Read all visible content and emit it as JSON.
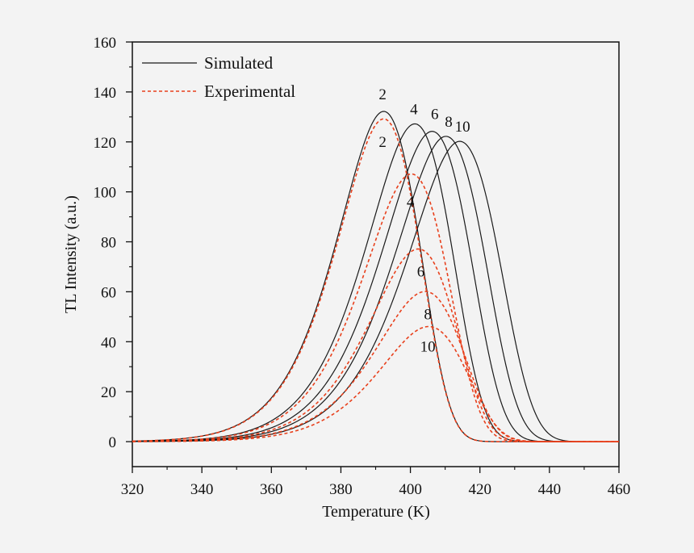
{
  "chart_data": {
    "type": "line",
    "xlabel": "Temperature (K)",
    "ylabel": "TL Intensity (a.u.)",
    "xlim": [
      320,
      460
    ],
    "ylim": [
      -10,
      160
    ],
    "x_ticks": [
      320,
      340,
      360,
      380,
      400,
      420,
      440,
      460
    ],
    "y_ticks": [
      0,
      20,
      40,
      60,
      80,
      100,
      120,
      140,
      160
    ],
    "legend": {
      "position": "top-left",
      "entries": [
        {
          "label": "Simulated",
          "style": "solid",
          "color": "#1a1a1a"
        },
        {
          "label": "Experimental",
          "style": "dashed",
          "color": "#e8401c"
        }
      ]
    },
    "series": [
      {
        "name": "Simulated 2",
        "group": "Simulated",
        "label": "2",
        "peak_T": 393,
        "peak_I": 132,
        "color": "#1a1a1a"
      },
      {
        "name": "Simulated 4",
        "group": "Simulated",
        "label": "4",
        "peak_T": 402,
        "peak_I": 127,
        "color": "#1a1a1a"
      },
      {
        "name": "Simulated 6",
        "group": "Simulated",
        "label": "6",
        "peak_T": 407,
        "peak_I": 124,
        "color": "#1a1a1a"
      },
      {
        "name": "Simulated 8",
        "group": "Simulated",
        "label": "8",
        "peak_T": 411,
        "peak_I": 122,
        "color": "#1a1a1a"
      },
      {
        "name": "Simulated 10",
        "group": "Simulated",
        "label": "10",
        "peak_T": 415,
        "peak_I": 120,
        "color": "#1a1a1a"
      },
      {
        "name": "Experimental 2",
        "group": "Experimental",
        "label": "2",
        "peak_T": 393,
        "peak_I": 129,
        "color": "#e8401c"
      },
      {
        "name": "Experimental 4",
        "group": "Experimental",
        "label": "4",
        "peak_T": 401,
        "peak_I": 107,
        "color": "#e8401c"
      },
      {
        "name": "Experimental 6",
        "group": "Experimental",
        "label": "6",
        "peak_T": 403,
        "peak_I": 77,
        "color": "#e8401c"
      },
      {
        "name": "Experimental 8",
        "group": "Experimental",
        "label": "8",
        "peak_T": 405,
        "peak_I": 60,
        "color": "#e8401c"
      },
      {
        "name": "Experimental 10",
        "group": "Experimental",
        "label": "10",
        "peak_T": 406,
        "peak_I": 46,
        "color": "#e8401c"
      }
    ],
    "annotations": [
      {
        "text": "2",
        "series": "Simulated 2",
        "x": 392,
        "y": 139
      },
      {
        "text": "4",
        "series": "Simulated 4",
        "x": 401,
        "y": 133
      },
      {
        "text": "6",
        "series": "Simulated 6",
        "x": 407,
        "y": 131
      },
      {
        "text": "8",
        "series": "Simulated 8",
        "x": 411,
        "y": 128
      },
      {
        "text": "10",
        "series": "Simulated 10",
        "x": 415,
        "y": 126
      },
      {
        "text": "2",
        "series": "Experimental 2",
        "x": 392,
        "y": 120
      },
      {
        "text": "4",
        "series": "Experimental 4",
        "x": 400,
        "y": 96
      },
      {
        "text": "6",
        "series": "Experimental 6",
        "x": 403,
        "y": 68
      },
      {
        "text": "8",
        "series": "Experimental 8",
        "x": 405,
        "y": 51
      },
      {
        "text": "10",
        "series": "Experimental 10",
        "x": 405,
        "y": 38
      }
    ]
  }
}
